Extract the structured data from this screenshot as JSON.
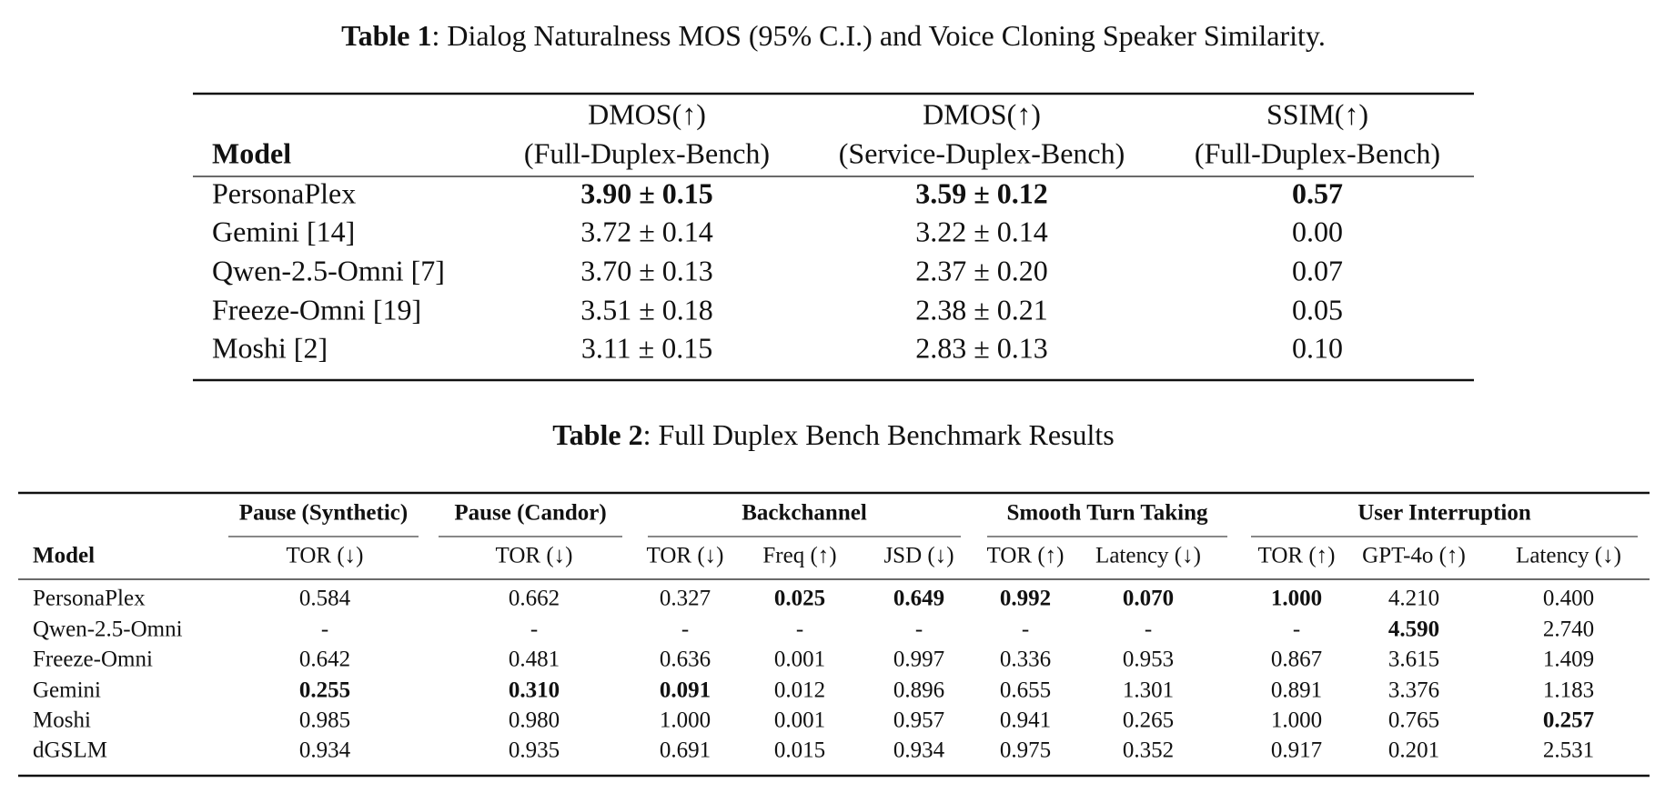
{
  "table1": {
    "caption_label": "Table 1",
    "caption": ": Dialog Naturalness MOS (95% C.I.) and Voice Cloning Speaker Similarity.",
    "header_top": [
      "DMOS(↑)",
      "DMOS(↑)",
      "SSIM(↑)"
    ],
    "header": [
      "Model",
      "(Full-Duplex-Bench)",
      "(Service-Duplex-Bench)",
      "(Full-Duplex-Bench)"
    ],
    "rows": [
      [
        "PersonaPlex",
        "3.90 ± 0.15",
        "3.59 ± 0.12",
        "0.57"
      ],
      [
        "Gemini [14]",
        "3.72 ± 0.14",
        "3.22 ± 0.14",
        "0.00"
      ],
      [
        "Qwen-2.5-Omni [7]",
        "3.70 ± 0.13",
        "2.37 ± 0.20",
        "0.07"
      ],
      [
        "Freeze-Omni [19]",
        "3.51 ± 0.18",
        "2.38 ± 0.21",
        "0.05"
      ],
      [
        "Moshi [2]",
        "3.11 ± 0.15",
        "2.83 ± 0.13",
        "0.10"
      ]
    ],
    "bold": [
      [
        0,
        1
      ],
      [
        0,
        2
      ],
      [
        0,
        3
      ]
    ]
  },
  "table2": {
    "caption_label": "Table 2",
    "caption": ": Full Duplex Bench Benchmark Results",
    "groups": [
      "Pause (Synthetic)",
      "Pause (Candor)",
      "Backchannel",
      "Smooth Turn Taking",
      "User Interruption"
    ],
    "header": [
      "Model",
      "TOR (↓)",
      "TOR (↓)",
      "TOR (↓)",
      "Freq (↑)",
      "JSD (↓)",
      "TOR (↑)",
      "Latency (↓)",
      "TOR (↑)",
      "GPT-4o (↑)",
      "Latency (↓)"
    ],
    "rows": [
      [
        "PersonaPlex",
        "0.584",
        "0.662",
        "0.327",
        "0.025",
        "0.649",
        "0.992",
        "0.070",
        "1.000",
        "4.210",
        "0.400"
      ],
      [
        "Qwen-2.5-Omni",
        "-",
        "-",
        "-",
        "-",
        "-",
        "-",
        "-",
        "-",
        "4.590",
        "2.740"
      ],
      [
        "Freeze-Omni",
        "0.642",
        "0.481",
        "0.636",
        "0.001",
        "0.997",
        "0.336",
        "0.953",
        "0.867",
        "3.615",
        "1.409"
      ],
      [
        "Gemini",
        "0.255",
        "0.310",
        "0.091",
        "0.012",
        "0.896",
        "0.655",
        "1.301",
        "0.891",
        "3.376",
        "1.183"
      ],
      [
        "Moshi",
        "0.985",
        "0.980",
        "1.000",
        "0.001",
        "0.957",
        "0.941",
        "0.265",
        "1.000",
        "0.765",
        "0.257"
      ],
      [
        "dGSLM",
        "0.934",
        "0.935",
        "0.691",
        "0.015",
        "0.934",
        "0.975",
        "0.352",
        "0.917",
        "0.201",
        "2.531"
      ]
    ],
    "bold": [
      [
        0,
        4
      ],
      [
        0,
        5
      ],
      [
        0,
        6
      ],
      [
        0,
        7
      ],
      [
        0,
        8
      ],
      [
        1,
        9
      ],
      [
        3,
        1
      ],
      [
        3,
        2
      ],
      [
        3,
        3
      ],
      [
        4,
        10
      ]
    ]
  }
}
